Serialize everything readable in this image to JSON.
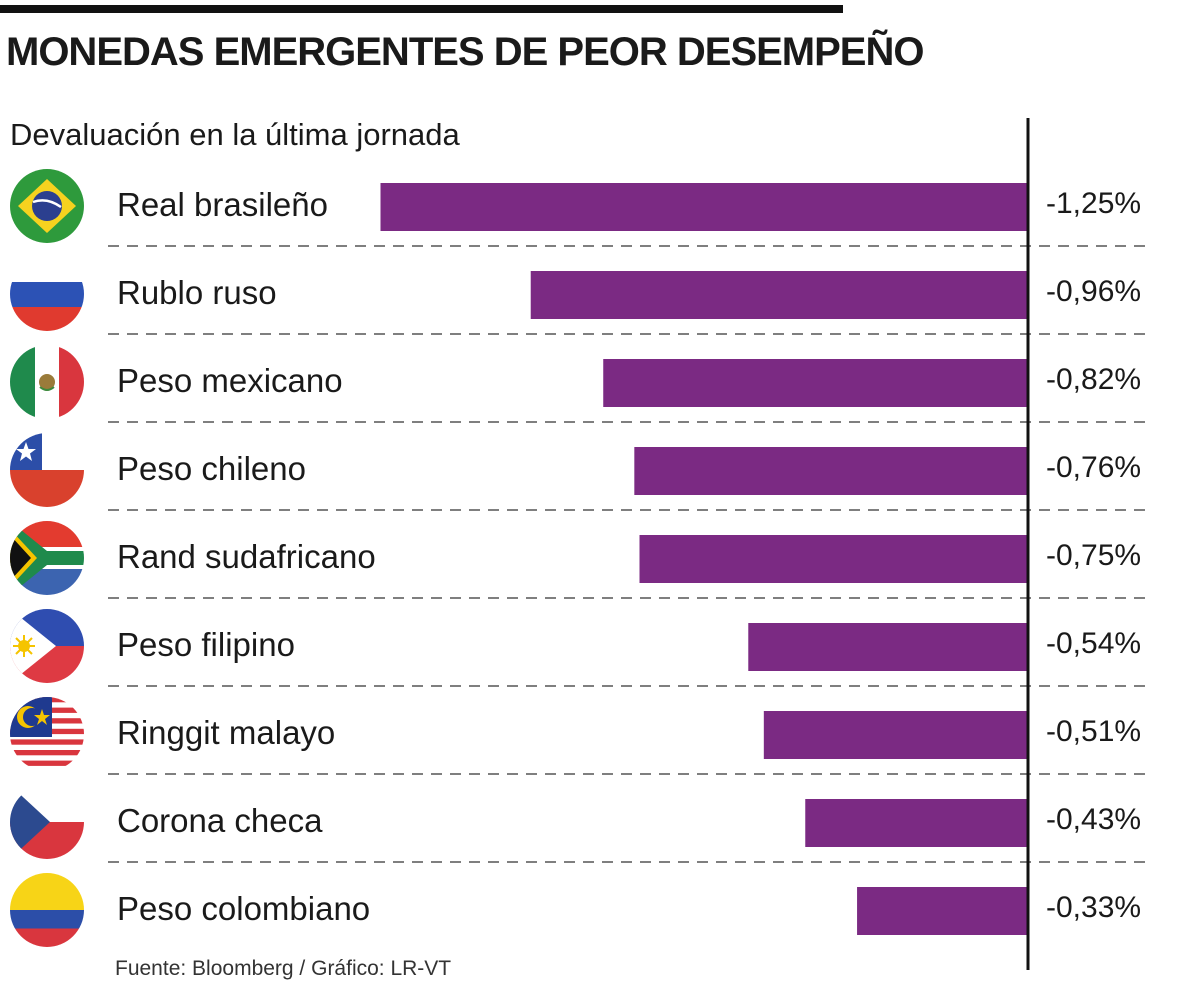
{
  "header": {
    "title": "MONEDAS EMERGENTES DE PEOR DESEMPEÑO",
    "subtitle": "Devaluación en la última jornada"
  },
  "footer": {
    "source": "Fuente: Bloomberg / Gráfico: LR-VT"
  },
  "colors": {
    "bar": "#7b2a83",
    "axis": "#111111",
    "divider": "#555555"
  },
  "chart_data": {
    "type": "bar",
    "orientation": "horizontal",
    "title": "MONEDAS EMERGENTES DE PEOR DESEMPEÑO",
    "subtitle": "Devaluación en la última jornada",
    "unit": "%",
    "categories": [
      "Real brasileño",
      "Rublo ruso",
      "Peso mexicano",
      "Peso chileno",
      "Rand sudafricano",
      "Peso filipino",
      "Ringgit malayo",
      "Corona checa",
      "Peso colombiano"
    ],
    "values": [
      -1.25,
      -0.96,
      -0.82,
      -0.76,
      -0.75,
      -0.54,
      -0.51,
      -0.43,
      -0.33
    ],
    "value_labels": [
      "-1,25%",
      "-0,96%",
      "-0,82%",
      "-0,76%",
      "-0,75%",
      "-0,54%",
      "-0,51%",
      "-0,43%",
      "-0,33%"
    ],
    "flags": [
      "brazil-flag-icon",
      "russia-flag-icon",
      "mexico-flag-icon",
      "chile-flag-icon",
      "south-africa-flag-icon",
      "philippines-flag-icon",
      "malaysia-flag-icon",
      "czech-flag-icon",
      "colombia-flag-icon"
    ],
    "source": "Fuente: Bloomberg / Gráfico: LR-VT"
  }
}
